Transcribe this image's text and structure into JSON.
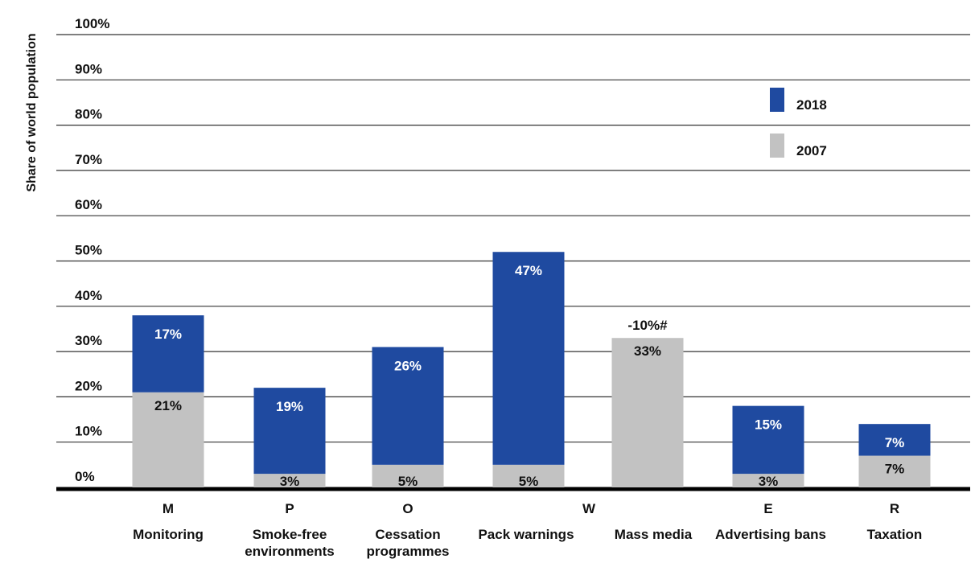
{
  "chart_data": {
    "type": "bar",
    "stacked": true,
    "ylabel": "Share of world population",
    "ylim": [
      0,
      100
    ],
    "y_ticks": [
      "0%",
      "10%",
      "20%",
      "30%",
      "40%",
      "50%",
      "60%",
      "70%",
      "80%",
      "90%",
      "100%"
    ],
    "categories": [
      {
        "letter": "M",
        "name": "Monitoring"
      },
      {
        "letter": "P",
        "name": "Smoke-free environments"
      },
      {
        "letter": "O",
        "name": "Cessation programmes"
      },
      {
        "letter": "W",
        "name": "Pack warnings"
      },
      {
        "letter": "",
        "name": "Mass media"
      },
      {
        "letter": "E",
        "name": "Advertising bans"
      },
      {
        "letter": "R",
        "name": "Taxation"
      }
    ],
    "series": [
      {
        "name": "2007",
        "color": "#c2c2c2",
        "values": [
          21,
          3,
          5,
          5,
          33,
          3,
          7
        ],
        "labels": [
          "21%",
          "3%",
          "5%",
          "5%",
          "33%",
          "3%",
          "7%"
        ]
      },
      {
        "name": "2018",
        "color": "#1f4aa0",
        "values": [
          17,
          19,
          26,
          47,
          0,
          15,
          7
        ],
        "labels": [
          "17%",
          "19%",
          "26%",
          "47%",
          "",
          "15%",
          "7%"
        ]
      }
    ],
    "annotations": [
      {
        "category": "Mass media",
        "text": "-10%#"
      }
    ],
    "legend": {
      "position": "top-right",
      "entries": [
        "2018",
        "2007"
      ]
    },
    "grid": true
  }
}
